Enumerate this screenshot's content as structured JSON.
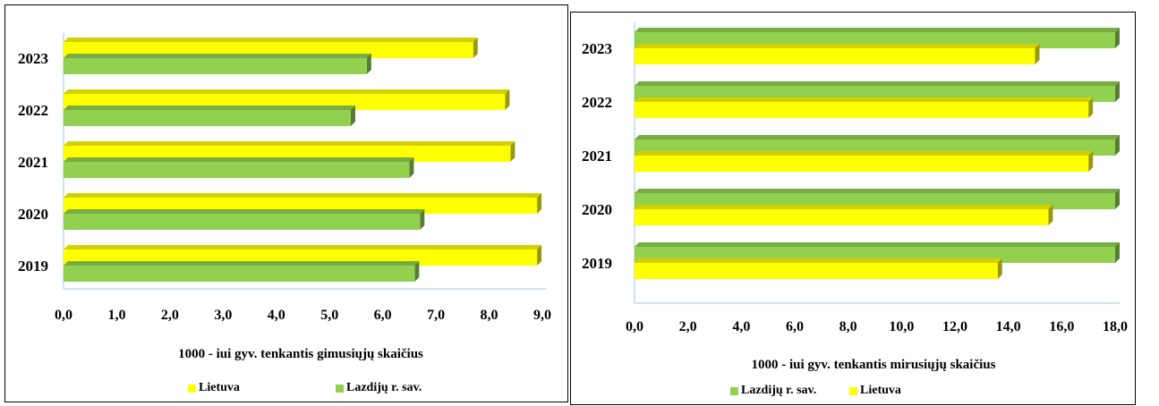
{
  "colors": {
    "lietuva": "#ffff00",
    "lazdiju": "#92d050",
    "axis": "#bfd7ee"
  },
  "chart_data": [
    {
      "type": "bar",
      "orientation": "horizontal",
      "categories": [
        "2023",
        "2022",
        "2021",
        "2020",
        "2019"
      ],
      "series": [
        {
          "name": "Lietuva",
          "values": [
            7.7,
            8.3,
            8.4,
            8.9,
            8.9
          ]
        },
        {
          "name": "Lazdijų r. sav.",
          "values": [
            5.7,
            5.4,
            6.5,
            6.7,
            6.6
          ]
        }
      ],
      "xlim": [
        0,
        9
      ],
      "xticks": [
        "0,0",
        "1,0",
        "2,0",
        "3,0",
        "4,0",
        "5,0",
        "6,0",
        "7,0",
        "8,0",
        "9,0"
      ],
      "xlabel": "1000 - iui gyv. tenkantis gimusiųjų  skaičius",
      "legend": [
        "Lietuva",
        "Lazdijų r. sav."
      ],
      "legend_position": "bottom"
    },
    {
      "type": "bar",
      "orientation": "horizontal",
      "categories": [
        "2023",
        "2022",
        "2021",
        "2020",
        "2019"
      ],
      "series": [
        {
          "name": "Lazdijų r. sav.",
          "values": [
            18.0,
            18.0,
            18.0,
            18.0,
            18.0
          ]
        },
        {
          "name": "Lietuva",
          "values": [
            15.0,
            17.0,
            17.0,
            15.5,
            13.6
          ]
        }
      ],
      "xlim": [
        0,
        18
      ],
      "xticks": [
        "0,0",
        "2,0",
        "4,0",
        "6,0",
        "8,0",
        "10,0",
        "12,0",
        "14,0",
        "16,0",
        "18,0"
      ],
      "xlabel": "1000 - iui gyv. tenkantis mirusiųjų  skaičius",
      "legend": [
        "Lazdijų r. sav.",
        "Lietuva"
      ],
      "legend_position": "bottom"
    }
  ]
}
